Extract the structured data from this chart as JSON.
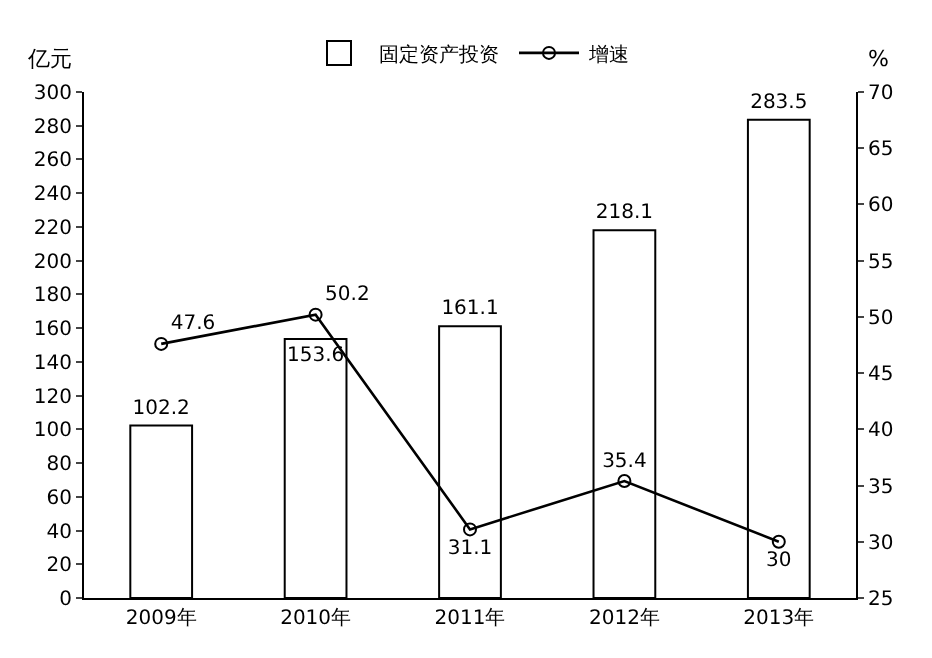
{
  "chart_data": {
    "type": "bar",
    "categories": [
      "2009年",
      "2010年",
      "2011年",
      "2012年",
      "2013年"
    ],
    "ylabel": "亿元",
    "y2label": "%",
    "series": [
      {
        "name": "固定资产投资",
        "color": "#ffffff",
        "values": [
          102.2,
          153.6,
          161.1,
          218.1,
          283.5
        ]
      },
      {
        "name": "增速",
        "type": "line",
        "axis": "y2",
        "color": "#000000",
        "marker": "circle",
        "line_style": "solid",
        "values": [
          47.6,
          50.2,
          31.1,
          35.4,
          30
        ]
      }
    ],
    "ylim": [
      0,
      300
    ],
    "yticks": [
      0,
      20,
      40,
      60,
      80,
      100,
      120,
      140,
      160,
      180,
      200,
      220,
      240,
      260,
      280,
      300
    ],
    "y2lim": [
      25,
      70
    ],
    "y2ticks": [
      25,
      30,
      35,
      40,
      45,
      50,
      55,
      60,
      65,
      70
    ],
    "data_labels": true,
    "grid": false,
    "legend": "top"
  }
}
